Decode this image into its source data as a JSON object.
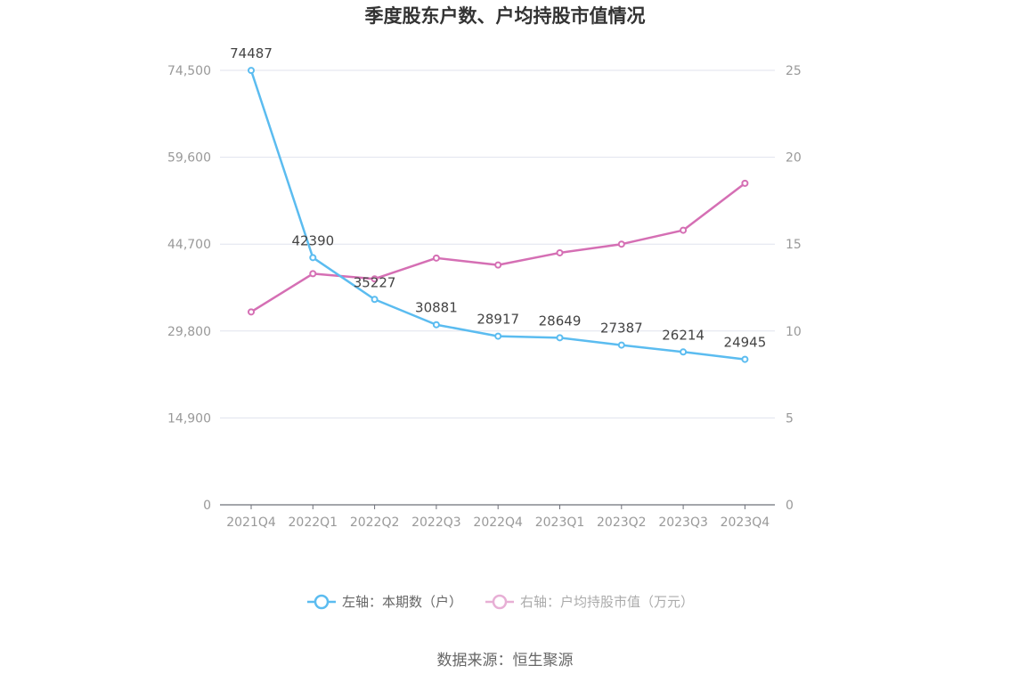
{
  "chart_data": {
    "type": "line",
    "title": "季度股东户数、户均持股市值情况",
    "categories": [
      "2021Q4",
      "2022Q1",
      "2022Q2",
      "2022Q3",
      "2022Q4",
      "2023Q1",
      "2023Q2",
      "2023Q3",
      "2023Q4"
    ],
    "y_left": {
      "ticks": [
        "0",
        "14,900",
        "29,800",
        "44,700",
        "59,600",
        "74,500"
      ],
      "range": [
        0,
        74500
      ]
    },
    "y_right": {
      "ticks": [
        "0",
        "5",
        "10",
        "15",
        "20",
        "25"
      ],
      "range": [
        0,
        25
      ]
    },
    "series": [
      {
        "name": "左轴：本期数（户）",
        "axis": "left",
        "color": "#5bbcf0",
        "values": [
          74487,
          42390,
          35227,
          30881,
          28917,
          28649,
          27387,
          26214,
          24945
        ],
        "labels": [
          "74487",
          "42390",
          "35227",
          "30881",
          "28917",
          "28649",
          "27387",
          "26214",
          "24945"
        ]
      },
      {
        "name": "右轴：户均持股市值（万元）",
        "axis": "right",
        "color": "#d56fb4",
        "values": [
          11.1,
          13.3,
          13.0,
          14.2,
          13.8,
          14.5,
          15.0,
          15.8,
          18.5
        ]
      }
    ],
    "grid": true,
    "legend_position": "bottom"
  },
  "source": "数据来源：恒生聚源"
}
